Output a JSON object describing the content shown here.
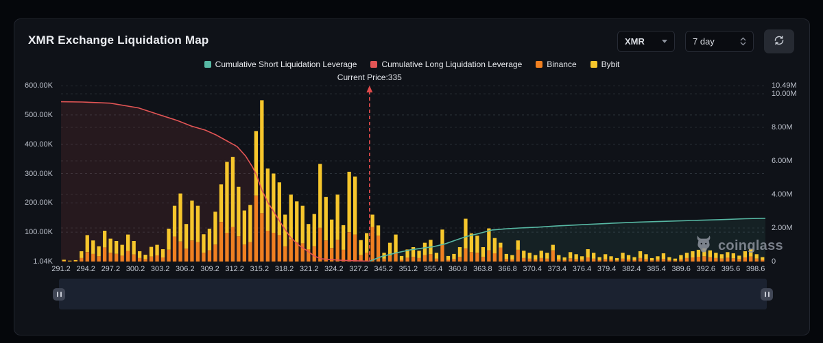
{
  "header": {
    "title": "XMR Exchange Liquidation Map"
  },
  "controls": {
    "symbol": "XMR",
    "period": "7 day",
    "refresh_icon": "refresh-icon"
  },
  "legend": {
    "items": [
      {
        "label": "Cumulative Short Liquidation Leverage",
        "color": "#57b8a4"
      },
      {
        "label": "Cumulative Long Liquidation Leverage",
        "color": "#e35555"
      },
      {
        "label": "Binance",
        "color": "#f08021"
      },
      {
        "label": "Bybit",
        "color": "#f6c62c"
      }
    ]
  },
  "annotation": {
    "current_price_label": "Current Price:335",
    "current_price": 335
  },
  "watermark": {
    "text": "coinglass"
  },
  "chart_data": {
    "type": "bar",
    "title": "XMR Exchange Liquidation Map",
    "grid": "dashed-horizontal",
    "legend_position": "top-center",
    "x_tick_labels": [
      "291.2",
      "294.2",
      "297.2",
      "300.2",
      "303.2",
      "306.2",
      "309.2",
      "312.2",
      "315.2",
      "318.2",
      "321.2",
      "324.2",
      "327.2",
      "345.2",
      "351.2",
      "355.4",
      "360.8",
      "363.8",
      "366.8",
      "370.4",
      "373.4",
      "376.4",
      "379.4",
      "382.4",
      "385.4",
      "389.6",
      "392.6",
      "395.6",
      "398.6"
    ],
    "left_axis": {
      "tick_labels": [
        "600.00K",
        "500.00K",
        "400.00K",
        "300.00K",
        "200.00K",
        "100.00K",
        "1.04K"
      ],
      "tick_values_k": [
        600,
        500,
        400,
        300,
        200,
        100,
        1.04
      ],
      "max_k": 600
    },
    "right_axis": {
      "tick_labels": [
        "10.49M",
        "10.00M",
        "8.00M",
        "6.00M",
        "4.00M",
        "2.00M",
        "0"
      ],
      "tick_values_m": [
        10.49,
        10,
        8,
        6,
        4,
        2,
        0
      ],
      "max_m": 10.49
    },
    "bar_colors": {
      "binance": "#f08021",
      "bybit": "#f6c62c"
    },
    "series": [
      {
        "name": "Binance",
        "type": "bar",
        "unit": "K",
        "values_k": [
          2,
          1,
          2,
          12,
          32,
          26,
          18,
          48,
          30,
          26,
          20,
          36,
          24,
          12,
          8,
          17,
          21,
          14,
          40,
          85,
          68,
          44,
          72,
          66,
          30,
          38,
          58,
          135,
          98,
          118,
          86,
          58,
          66,
          225,
          165,
          105,
          98,
          90,
          52,
          75,
          66,
          62,
          42,
          52,
          115,
          72,
          46,
          74,
          40,
          100,
          92,
          22,
          30,
          118,
          88,
          10,
          20,
          30,
          6,
          13,
          16,
          12,
          22,
          25,
          10,
          58,
          6,
          9,
          16,
          45,
          32,
          30,
          16,
          38,
          28,
          48,
          9,
          7,
          40,
          12,
          10,
          7,
          12,
          10,
          38,
          7,
          5,
          11,
          8,
          6,
          14,
          10,
          5,
          8,
          6,
          4,
          10,
          7,
          5,
          12,
          8,
          4,
          6,
          9,
          5,
          3,
          7,
          12,
          14,
          16,
          18,
          15,
          12,
          10,
          13,
          11,
          8,
          14,
          17,
          10,
          6
        ]
      },
      {
        "name": "Bybit",
        "type": "bar",
        "unit": "K",
        "values_k": [
          4,
          2,
          3,
          23,
          58,
          46,
          34,
          57,
          48,
          44,
          37,
          56,
          46,
          23,
          15,
          33,
          36,
          28,
          72,
          105,
          164,
          84,
          136,
          124,
          63,
          74,
          112,
          128,
          242,
          239,
          169,
          116,
          127,
          220,
          385,
          212,
          202,
          180,
          108,
          153,
          139,
          128,
          86,
          110,
          218,
          148,
          97,
          154,
          84,
          206,
          198,
          51,
          67,
          42,
          35,
          20,
          44,
          62,
          13,
          28,
          33,
          25,
          42,
          49,
          20,
          51,
          13,
          17,
          33,
          101,
          64,
          58,
          33,
          75,
          52,
          16,
          17,
          15,
          32,
          25,
          20,
          15,
          25,
          20,
          19,
          15,
          9,
          21,
          17,
          12,
          28,
          20,
          10,
          17,
          12,
          8,
          20,
          15,
          10,
          23,
          17,
          8,
          12,
          19,
          10,
          7,
          15,
          18,
          21,
          24,
          27,
          23,
          18,
          15,
          19,
          17,
          12,
          21,
          25,
          15,
          9
        ]
      },
      {
        "name": "Cumulative Long Liquidation Leverage",
        "type": "line",
        "axis": "left",
        "unit": "K",
        "color": "#e35555",
        "points": [
          [
            0,
            545
          ],
          [
            0.03,
            544
          ],
          [
            0.07,
            540
          ],
          [
            0.11,
            524
          ],
          [
            0.14,
            500
          ],
          [
            0.165,
            481
          ],
          [
            0.185,
            462
          ],
          [
            0.205,
            448
          ],
          [
            0.22,
            432
          ],
          [
            0.235,
            412
          ],
          [
            0.25,
            392
          ],
          [
            0.262,
            360
          ],
          [
            0.272,
            322
          ],
          [
            0.278,
            292
          ],
          [
            0.285,
            245
          ],
          [
            0.294,
            200
          ],
          [
            0.304,
            162
          ],
          [
            0.315,
            120
          ],
          [
            0.326,
            82
          ],
          [
            0.338,
            55
          ],
          [
            0.35,
            36
          ],
          [
            0.36,
            18
          ],
          [
            0.37,
            9
          ],
          [
            0.4,
            4
          ],
          [
            0.438,
            1
          ]
        ]
      },
      {
        "name": "Cumulative Short Liquidation Leverage",
        "type": "line",
        "axis": "right",
        "unit": "M",
        "color": "#57b8a4",
        "points": [
          [
            0.438,
            0.02
          ],
          [
            0.455,
            0.3
          ],
          [
            0.474,
            0.5
          ],
          [
            0.496,
            0.7
          ],
          [
            0.513,
            0.8
          ],
          [
            0.528,
            0.88
          ],
          [
            0.545,
            1.05
          ],
          [
            0.56,
            1.27
          ],
          [
            0.576,
            1.5
          ],
          [
            0.593,
            1.67
          ],
          [
            0.612,
            1.88
          ],
          [
            0.632,
            1.95
          ],
          [
            0.651,
            2.0
          ],
          [
            0.677,
            2.05
          ],
          [
            0.703,
            2.12
          ],
          [
            0.742,
            2.2
          ],
          [
            0.781,
            2.28
          ],
          [
            0.82,
            2.35
          ],
          [
            0.859,
            2.4
          ],
          [
            0.898,
            2.45
          ],
          [
            0.937,
            2.5
          ],
          [
            0.971,
            2.55
          ],
          [
            1,
            2.58
          ]
        ]
      }
    ],
    "current_price_line": {
      "x_frac": 0.438,
      "color": "#e14b4b",
      "style": "dashed",
      "label": "Current Price:335"
    }
  }
}
